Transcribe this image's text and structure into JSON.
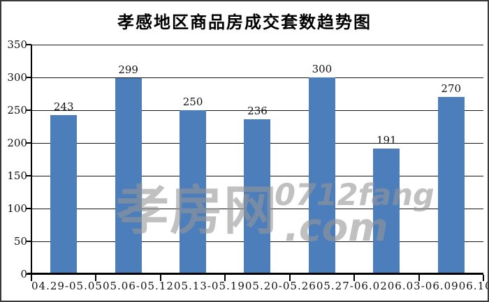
{
  "window": {
    "title": "孝感地区商品房成交套数趋势图"
  },
  "chart_data": {
    "type": "bar",
    "title": "孝感地区商品房成交套数趋势图",
    "categories": [
      "04.29-05.05",
      "05.06-05.12",
      "05.13-05.19",
      "05.20-05.26",
      "05.27-06.02",
      "06.03-06.09",
      "06.10-06.16"
    ],
    "values": [
      243,
      299,
      250,
      236,
      300,
      191,
      270
    ],
    "xlabel": "",
    "ylabel": "",
    "ylim": [
      0,
      350
    ],
    "y_ticks": [
      350,
      300,
      250,
      200,
      150,
      100,
      50,
      0
    ],
    "grid": "horizontal",
    "legend": "none",
    "bar_color": "#4d7ebc",
    "axis_color": "#000000"
  },
  "watermark": {
    "cjk": "孝房网",
    "latin": "0712fang",
    "suffix": ".com",
    "color": "#999999"
  }
}
